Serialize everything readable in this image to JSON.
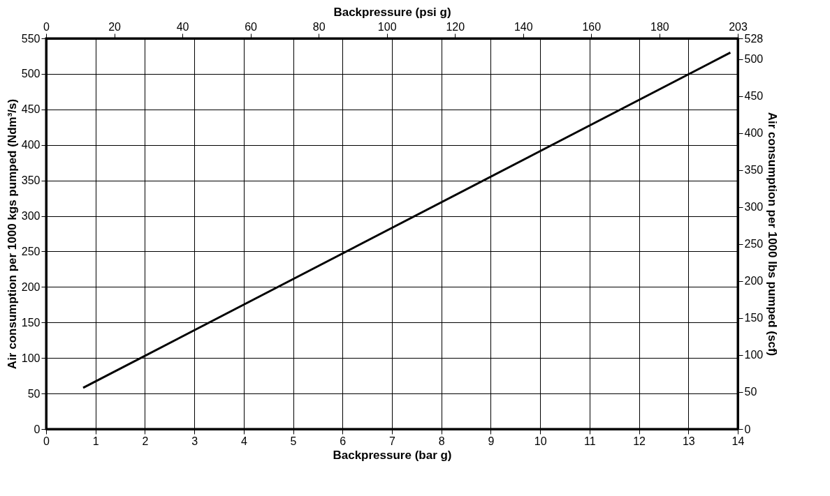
{
  "chart_data": {
    "type": "line",
    "xlabel": "Backpressure (bar g)",
    "ylabel": "Air consumption per 1000 kgs pumped (Ndm³/s)",
    "x2label": "Backpressure (psi g)",
    "y2label": "Air consumption per 1000 lbs pumped (scf)",
    "series": [
      {
        "color": "#000000",
        "x": [
          0.75,
          13.85
        ],
        "values": [
          58,
          530
        ]
      }
    ],
    "xlim": [
      0,
      14
    ],
    "xticks": [
      0,
      1,
      2,
      3,
      4,
      5,
      6,
      7,
      8,
      9,
      10,
      11,
      12,
      13,
      14
    ],
    "ylim": [
      0,
      550
    ],
    "yticks": [
      0,
      50,
      100,
      150,
      200,
      250,
      300,
      350,
      400,
      450,
      500,
      550
    ],
    "x2lim": [
      0,
      203
    ],
    "x2ticks": [
      0,
      20,
      40,
      60,
      80,
      100,
      120,
      140,
      160,
      180,
      203
    ],
    "y2lim": [
      0,
      528
    ],
    "y2ticks": [
      0,
      50,
      100,
      150,
      200,
      250,
      300,
      350,
      400,
      450,
      500,
      528
    ],
    "grid": true,
    "marker": "none",
    "line_style": "solid"
  }
}
